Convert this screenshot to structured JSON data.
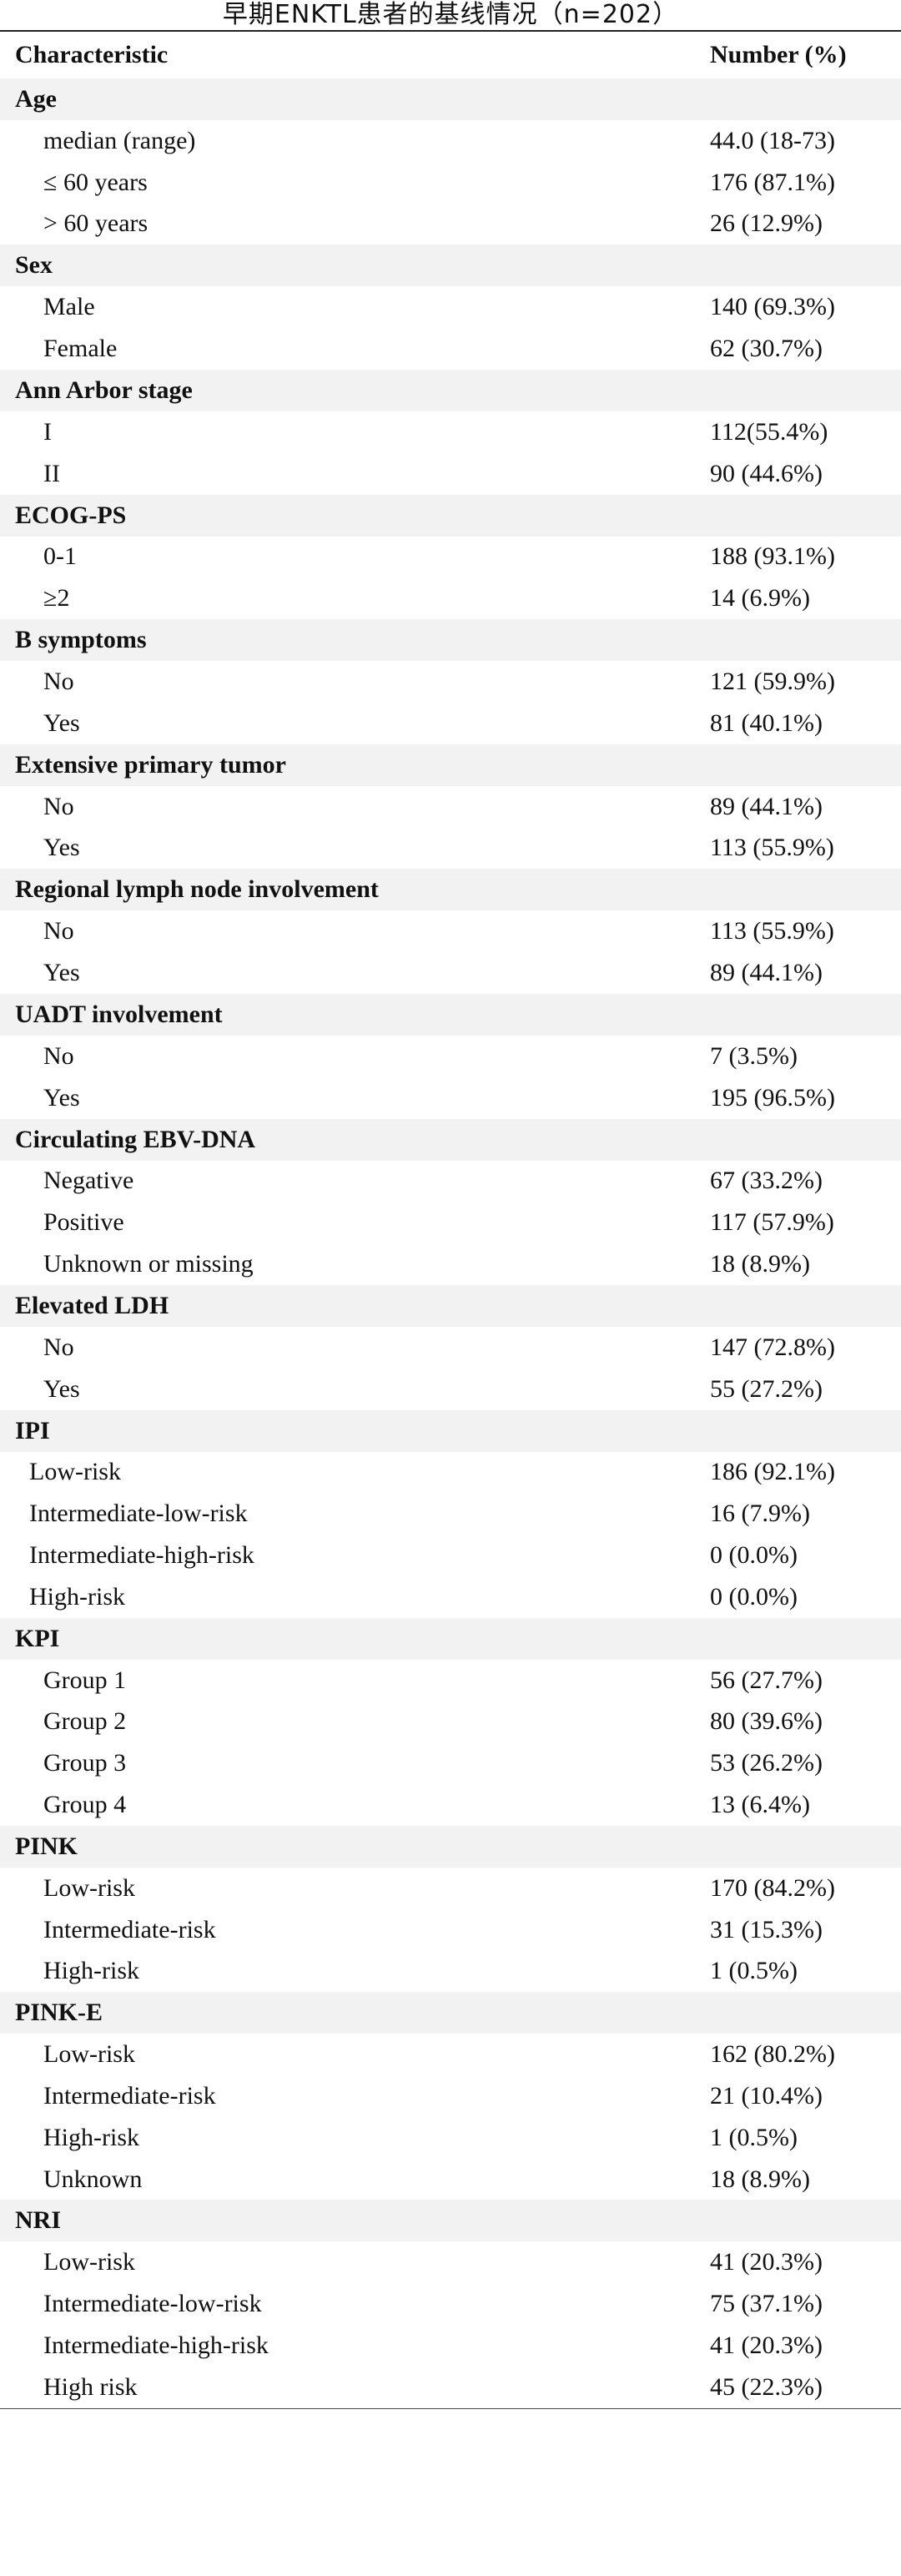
{
  "title": "早期ENKTL患者的基线情况（n=202）",
  "header": {
    "characteristic": "Characteristic",
    "number": "Number (%)"
  },
  "groups": [
    {
      "name": "Age",
      "items": [
        {
          "label": "median (range)",
          "value": "44.0 (18-73)"
        },
        {
          "label": "≤ 60 years",
          "value": "176 (87.1%)"
        },
        {
          "label": "> 60 years",
          "value": "26 (12.9%)"
        }
      ]
    },
    {
      "name": "Sex",
      "items": [
        {
          "label": "Male",
          "value": "140 (69.3%)"
        },
        {
          "label": "Female",
          "value": "62 (30.7%)"
        }
      ]
    },
    {
      "name": "Ann Arbor stage",
      "items": [
        {
          "label": "I",
          "value": "112(55.4%)"
        },
        {
          "label": "II",
          "value": "90 (44.6%)"
        }
      ]
    },
    {
      "name": "ECOG-PS",
      "items": [
        {
          "label": "0-1",
          "value": "188 (93.1%)"
        },
        {
          "label": "≥2",
          "value": "14 (6.9%)"
        }
      ]
    },
    {
      "name": "B symptoms",
      "items": [
        {
          "label": "No",
          "value": "121 (59.9%)"
        },
        {
          "label": "Yes",
          "value": "81 (40.1%)"
        }
      ]
    },
    {
      "name": "Extensive primary tumor",
      "items": [
        {
          "label": "No",
          "value": "89 (44.1%)"
        },
        {
          "label": "Yes",
          "value": "113 (55.9%)"
        }
      ]
    },
    {
      "name": "Regional lymph node involvement",
      "items": [
        {
          "label": "No",
          "value": "113 (55.9%)"
        },
        {
          "label": "Yes",
          "value": "89 (44.1%)"
        }
      ]
    },
    {
      "name": "UADT involvement",
      "items": [
        {
          "label": "No",
          "value": "7 (3.5%)"
        },
        {
          "label": "Yes",
          "value": "195 (96.5%)"
        }
      ]
    },
    {
      "name": "Circulating EBV-DNA",
      "items": [
        {
          "label": "Negative",
          "value": "67 (33.2%)"
        },
        {
          "label": "Positive",
          "value": "117 (57.9%)"
        },
        {
          "label": "Unknown or missing",
          "value": "18 (8.9%)"
        }
      ]
    },
    {
      "name": "Elevated LDH",
      "items": [
        {
          "label": "No",
          "value": "147 (72.8%)"
        },
        {
          "label": "Yes",
          "value": "55 (27.2%)"
        }
      ]
    },
    {
      "name": "IPI",
      "items": [
        {
          "label": "Low-risk",
          "value": "186 (92.1%)"
        },
        {
          "label": "Intermediate-low-risk",
          "value": "16 (7.9%)"
        },
        {
          "label": "Intermediate-high-risk",
          "value": "0 (0.0%)"
        },
        {
          "label": "High-risk",
          "value": "0 (0.0%)"
        }
      ]
    },
    {
      "name": "KPI",
      "items": [
        {
          "label": "Group 1",
          "value": "56 (27.7%)"
        },
        {
          "label": "Group 2",
          "value": "80 (39.6%)"
        },
        {
          "label": "Group 3",
          "value": "53 (26.2%)"
        },
        {
          "label": "Group 4",
          "value": "13 (6.4%)"
        }
      ]
    },
    {
      "name": "PINK",
      "items": [
        {
          "label": "Low-risk",
          "value": "170 (84.2%)"
        },
        {
          "label": "Intermediate-risk",
          "value": "31 (15.3%)"
        },
        {
          "label": "High-risk",
          "value": "1 (0.5%)"
        }
      ]
    },
    {
      "name": "PINK-E",
      "items": [
        {
          "label": "Low-risk",
          "value": "162 (80.2%)"
        },
        {
          "label": "Intermediate-risk",
          "value": "21 (10.4%)"
        },
        {
          "label": "High-risk",
          "value": "1 (0.5%)"
        },
        {
          "label": "Unknown",
          "value": "18 (8.9%)"
        }
      ]
    },
    {
      "name": "NRI",
      "items": [
        {
          "label": "Low-risk",
          "value": "41 (20.3%)"
        },
        {
          "label": "Intermediate-low-risk",
          "value": "75 (37.1%)"
        },
        {
          "label": "Intermediate-high-risk",
          "value": "41 (20.3%)"
        },
        {
          "label": "High risk",
          "value": "45 (22.3%)"
        }
      ]
    }
  ]
}
